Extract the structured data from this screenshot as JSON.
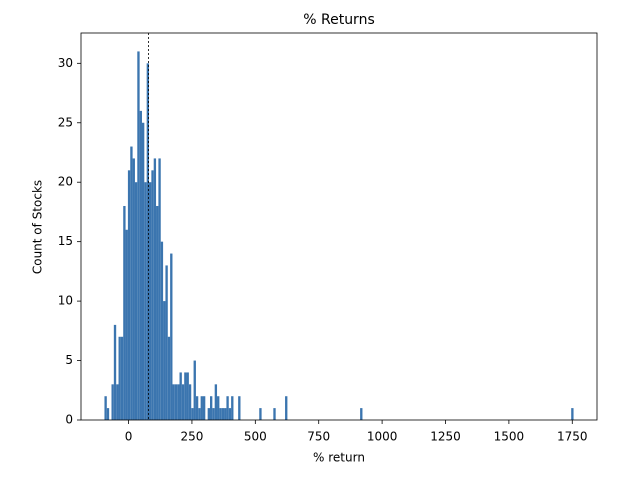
{
  "chart_data": {
    "type": "histogram",
    "title": "% Returns",
    "x_label": "% return",
    "y_label": "Count of Stocks",
    "color": "#3b75af",
    "bins": [
      -95,
      -85.75,
      -76.5,
      -67.25,
      -58,
      -48.75,
      -39.5,
      -30.25,
      -21,
      -11.75,
      -2.5,
      6.75,
      16,
      25.25,
      34.5,
      43.75,
      53,
      62.25,
      71.5,
      80.75,
      90,
      99.25,
      108.5,
      117.75,
      127,
      136.25,
      145.5,
      154.75,
      164,
      173.25,
      182.5,
      191.75,
      201,
      210.25,
      219.5,
      228.75,
      238,
      247.25,
      256.5,
      265.75,
      275,
      284.25,
      293.5,
      302.75,
      312,
      321.25,
      330.5,
      339.75,
      349,
      358.25,
      367.5,
      376.75,
      386,
      395.25,
      404.5,
      413.75,
      423,
      432.25,
      441.5,
      450.75,
      460,
      469.25,
      478.5,
      487.75,
      497,
      506.25,
      515.5,
      524.75,
      534,
      543.25,
      552.5,
      561.75,
      571,
      580.25,
      589.5,
      598.75,
      608,
      617.25,
      626.5,
      635.75,
      645,
      654.25,
      663.5,
      672.75,
      682,
      691.25,
      700.5,
      709.75,
      719,
      728.25,
      737.5,
      746.75,
      756,
      765.25,
      774.5,
      783.75,
      793,
      802.25,
      811.5,
      820.75,
      830,
      839.25,
      848.5,
      857.75,
      867,
      876.25,
      885.5,
      894.75,
      904,
      913.25,
      922.5,
      931.75,
      941,
      950.25,
      959.5,
      968.75,
      978,
      987.25,
      996.5,
      1005.75,
      1015,
      1024.25,
      1033.5,
      1042.75,
      1052,
      1061.25,
      1070.5,
      1079.75,
      1089,
      1098.25,
      1107.5,
      1116.75,
      1126,
      1135.25,
      1144.5,
      1153.75,
      1163,
      1172.25,
      1181.5,
      1190.75,
      1200,
      1209.25,
      1218.5,
      1227.75,
      1237,
      1246.25,
      1255.5,
      1264.75,
      1274,
      1283.25,
      1292.5,
      1301.75,
      1311,
      1320.25,
      1329.5,
      1338.75,
      1348,
      1357.25,
      1366.5,
      1375.75,
      1385,
      1394.25,
      1403.5,
      1412.75,
      1422,
      1431.25,
      1440.5,
      1449.75,
      1459,
      1468.25,
      1477.5,
      1486.75,
      1496,
      1505.25,
      1514.5,
      1523.75,
      1533,
      1542.25,
      1551.5,
      1560.75,
      1570,
      1579.25,
      1588.5,
      1597.75,
      1607,
      1616.25,
      1625.5,
      1634.75,
      1644,
      1653.25,
      1662.5,
      1671.75,
      1681,
      1690.25,
      1699.5,
      1708.75,
      1718,
      1727.25,
      1736.5,
      1745.75,
      1755
    ],
    "counts": [
      2,
      1,
      0,
      3,
      8,
      3,
      7,
      7,
      18,
      16,
      21,
      23,
      22,
      20,
      31,
      26,
      25,
      20,
      30,
      20,
      21,
      22,
      18,
      22,
      15,
      10,
      13,
      7,
      14,
      3,
      3,
      3,
      4,
      3,
      4,
      4,
      3,
      1,
      5,
      2,
      1,
      2,
      2,
      0,
      1,
      2,
      1,
      3,
      2,
      1,
      1,
      1,
      2,
      1,
      2,
      0,
      0,
      2,
      0,
      0,
      0,
      0,
      0,
      0,
      0,
      0,
      1,
      0,
      0,
      0,
      0,
      0,
      1,
      0,
      0,
      0,
      0,
      2,
      0,
      0,
      0,
      0,
      0,
      0,
      0,
      0,
      0,
      0,
      0,
      0,
      0,
      0,
      0,
      0,
      0,
      0,
      0,
      0,
      0,
      0,
      0,
      0,
      0,
      0,
      0,
      0,
      0,
      0,
      0,
      1,
      0,
      0,
      0,
      0,
      0,
      0,
      0,
      0,
      0,
      0,
      0,
      0,
      0,
      0,
      0,
      0,
      0,
      0,
      0,
      0,
      0,
      0,
      0,
      0,
      0,
      0,
      0,
      0,
      0,
      0,
      0,
      0,
      0,
      0,
      0,
      0,
      0,
      0,
      0,
      0,
      0,
      0,
      0,
      0,
      0,
      0,
      0,
      0,
      0,
      0,
      0,
      0,
      0,
      0,
      0,
      0,
      0,
      0,
      0,
      0,
      0,
      0,
      0,
      0,
      0,
      0,
      0,
      0,
      0,
      0,
      0,
      0,
      0,
      0,
      0,
      0,
      0,
      0,
      0,
      0,
      0,
      0,
      0,
      0,
      0,
      0,
      0,
      0,
      0,
      1
    ],
    "vline_x": 79,
    "xlim": [
      -187.5,
      1847.5
    ],
    "xticks": [
      0,
      250,
      500,
      750,
      1000,
      1250,
      1500,
      1750
    ],
    "ylim": [
      0,
      32.55
    ],
    "yticks": [
      0,
      5,
      10,
      15,
      20,
      25,
      30
    ]
  }
}
